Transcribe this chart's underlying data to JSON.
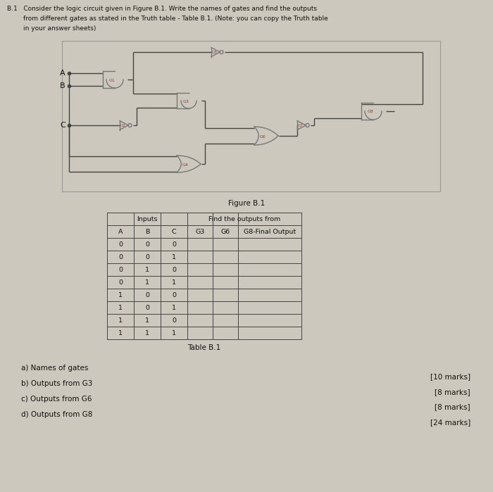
{
  "background_color": "#ccc8be",
  "gate_color": "#777777",
  "gate_label_color": "#8b3a3a",
  "wire_color": "#444444",
  "text_color": "#111111",
  "figure_label": "Figure B.1",
  "table_label": "Table B.1",
  "col_headers": [
    "A",
    "B",
    "C",
    "G3",
    "G6",
    "G8-Final Output"
  ],
  "input_rows": [
    [
      0,
      0,
      0
    ],
    [
      0,
      0,
      1
    ],
    [
      0,
      1,
      0
    ],
    [
      0,
      1,
      1
    ],
    [
      1,
      0,
      0
    ],
    [
      1,
      0,
      1
    ],
    [
      1,
      1,
      0
    ],
    [
      1,
      1,
      1
    ]
  ],
  "sub_questions": [
    "a) Names of gates",
    "b) Outputs from G3",
    "c) Outputs from G6",
    "d) Outputs from G8"
  ],
  "marks": [
    "[10 marks]",
    "[8 marks]",
    "[8 marks]",
    "[24 marks]"
  ],
  "title_line1": "B.1   Consider the logic circuit given in Figure B.1. Write the names of gates and find the outputs",
  "title_line2": "        from different gates as stated in the Truth table - Table B.1. (Note: you can copy the Truth table",
  "title_line3": "        in your answer sheets)"
}
